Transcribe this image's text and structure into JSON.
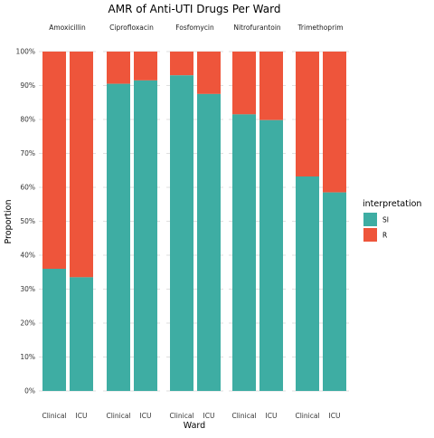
{
  "chart_data": {
    "type": "bar",
    "title": "AMR of Anti-UTI Drugs Per Ward",
    "xlabel": "Ward",
    "ylabel": "Proportion",
    "ylim": [
      0,
      1
    ],
    "yticks": [
      "0%",
      "10%",
      "20%",
      "30%",
      "40%",
      "50%",
      "60%",
      "70%",
      "80%",
      "90%",
      "100%"
    ],
    "grid": true,
    "stacked": true,
    "legend": {
      "title": "interpretation",
      "position": "right",
      "entries": [
        {
          "label": "SI",
          "color": "#3EADA3"
        },
        {
          "label": "R",
          "color": "#EE553B"
        }
      ]
    },
    "wards": [
      "Clinical",
      "ICU"
    ],
    "facets": [
      {
        "drug": "Amoxicillin",
        "SI": [
          0.36,
          0.335
        ],
        "R": [
          0.64,
          0.665
        ]
      },
      {
        "drug": "Ciprofloxacin",
        "SI": [
          0.905,
          0.915
        ],
        "R": [
          0.095,
          0.085
        ]
      },
      {
        "drug": "Fosfomycin",
        "SI": [
          0.93,
          0.875
        ],
        "R": [
          0.07,
          0.125
        ]
      },
      {
        "drug": "Nitrofurantoin",
        "SI": [
          0.815,
          0.798
        ],
        "R": [
          0.185,
          0.202
        ]
      },
      {
        "drug": "Trimethoprim",
        "SI": [
          0.632,
          0.585
        ],
        "R": [
          0.368,
          0.415
        ]
      }
    ]
  }
}
